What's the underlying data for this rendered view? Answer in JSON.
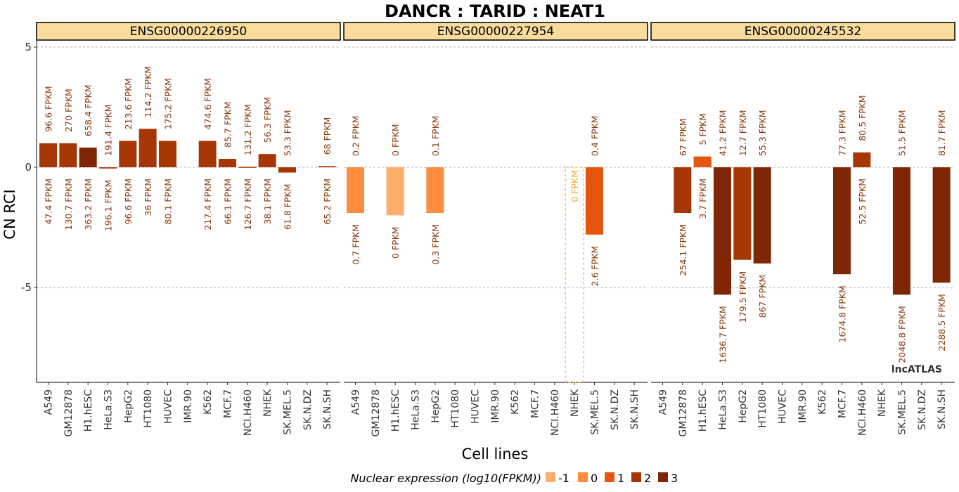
{
  "chart_data": {
    "type": "bar",
    "title": "DANCR : TARID : NEAT1",
    "xlabel": "Cell lines",
    "ylabel": "CN RCI",
    "ylim": [
      -9.1,
      6.1
    ],
    "yticks": [
      5,
      0,
      -5
    ],
    "ytick_labels": [
      "5",
      "0",
      "-5"
    ],
    "grid": "horizontal dashed at y ticks",
    "categories": [
      "A549",
      "GM12878",
      "H1.hESC",
      "HeLa.S3",
      "HepG2",
      "HT1080",
      "HUVEC",
      "IMR.90",
      "K562",
      "MCF.7",
      "NCI.H460",
      "NHEK",
      "SK.MEL.5",
      "SK.N.DZ",
      "SK.N.SH"
    ],
    "legend": {
      "title": "Nuclear expression (log10(FPKM))",
      "position": "bottom",
      "items": [
        {
          "label": "-1",
          "color": "#fdae6b"
        },
        {
          "label": "0",
          "color": "#fd8d3c"
        },
        {
          "label": "1",
          "color": "#e6550d"
        },
        {
          "label": "2",
          "color": "#a63603"
        },
        {
          "label": "3",
          "color": "#7f2704"
        }
      ]
    },
    "watermark": "lncATLAS",
    "panels": [
      {
        "gene": "ENSG00000226950",
        "values": [
          1.0,
          1.0,
          0.82,
          -0.05,
          1.1,
          1.6,
          1.1,
          null,
          1.1,
          0.35,
          0.02,
          0.55,
          -0.22,
          null,
          0.05
        ],
        "nuclear_log10": [
          1.7,
          2.1,
          2.6,
          2.3,
          2.0,
          1.6,
          1.9,
          null,
          2.3,
          1.8,
          2.1,
          1.6,
          1.8,
          null,
          1.8
        ],
        "top_labels": [
          "96.6 FPKM",
          "270 FPKM",
          "658.4 FPKM",
          "191.4 FPKM",
          "213.6 FPKM",
          "114.2 FPKM",
          "175.2 FPKM",
          "",
          "474.6 FPKM",
          "85.7 FPKM",
          "131.2 FPKM",
          "56.3 FPKM",
          "53.3 FPKM",
          "",
          "68 FPKM"
        ],
        "bottom_labels": [
          "47.4 FPKM",
          "130.7 FPKM",
          "363.2 FPKM",
          "196.1 FPKM",
          "96.6 FPKM",
          "36 FPKM",
          "80.1 FPKM",
          "",
          "217.4 FPKM",
          "66.1 FPKM",
          "126.7 FPKM",
          "38.1 FPKM",
          "61.8 FPKM",
          "",
          "65.2 FPKM"
        ]
      },
      {
        "gene": "ENSG00000227954",
        "values": [
          -1.9,
          null,
          -2.0,
          null,
          -1.9,
          null,
          null,
          null,
          null,
          null,
          null,
          null,
          -2.8,
          null,
          null
        ],
        "nuclear_log10": [
          0.0,
          null,
          -1.0,
          null,
          0.0,
          null,
          null,
          null,
          null,
          null,
          null,
          null,
          0.9,
          null,
          null
        ],
        "top_labels": [
          "0.2 FPKM",
          "",
          "0 FPKM",
          "",
          "0.1 FPKM",
          "",
          "",
          "",
          "",
          "",
          "",
          "",
          "0.4 FPKM",
          "",
          ""
        ],
        "bottom_labels": [
          "0.7 FPKM",
          "",
          "0 FPKM",
          "",
          "0.3 FPKM",
          "",
          "",
          "",
          "",
          "",
          "",
          "",
          "2.6 FPKM",
          "",
          ""
        ],
        "placeholder": {
          "category": "NHEK",
          "label": "0 FPKM"
        }
      },
      {
        "gene": "ENSG00000245532",
        "values": [
          null,
          -1.9,
          0.45,
          -5.3,
          -3.85,
          -4.0,
          null,
          null,
          null,
          -4.45,
          0.62,
          null,
          -5.3,
          null,
          -4.8
        ],
        "nuclear_log10": [
          null,
          2.4,
          0.6,
          3.2,
          2.3,
          2.9,
          null,
          null,
          null,
          3.2,
          1.7,
          null,
          3.3,
          null,
          3.4
        ],
        "top_labels": [
          "",
          "67 FPKM",
          "5 FPKM",
          "41.2 FPKM",
          "12.7 FPKM",
          "55.3 FPKM",
          "",
          "",
          "",
          "77.3 FPKM",
          "80.5 FPKM",
          "",
          "51.5 FPKM",
          "",
          "81.7 FPKM"
        ],
        "bottom_labels": [
          "",
          "254.1 FPKM",
          "3.7 FPKM",
          "1636.7 FPKM",
          "179.5 FPKM",
          "867 FPKM",
          "",
          "",
          "",
          "1674.8 FPKM",
          "52.5 FPKM",
          "",
          "2048.8 FPKM",
          "",
          "2288.5 FPKM"
        ]
      }
    ]
  }
}
